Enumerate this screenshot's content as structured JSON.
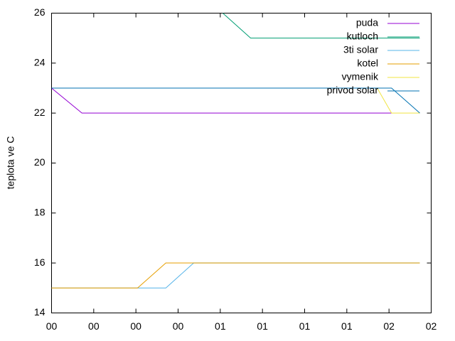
{
  "chart_data": {
    "type": "line",
    "y_label": "teplota ve C",
    "xlim": [
      0,
      9
    ],
    "ylim": [
      14,
      26
    ],
    "xticks": [
      {
        "value": 0,
        "label": "00"
      },
      {
        "value": 1,
        "label": "00"
      },
      {
        "value": 2,
        "label": "00"
      },
      {
        "value": 3,
        "label": "00"
      },
      {
        "value": 4,
        "label": "01"
      },
      {
        "value": 5,
        "label": "01"
      },
      {
        "value": 6,
        "label": "01"
      },
      {
        "value": 7,
        "label": "01"
      },
      {
        "value": 8,
        "label": "02"
      },
      {
        "value": 9,
        "label": "02"
      }
    ],
    "yticks": [
      14,
      16,
      18,
      20,
      22,
      24,
      26
    ],
    "legend": "top-right",
    "series": [
      {
        "name": "puda",
        "color": "#9400d3",
        "x": [
          0,
          0.72,
          8.06
        ],
        "values": [
          23,
          22,
          22
        ]
      },
      {
        "name": "kutloch",
        "color": "#009e73",
        "x": [
          4.06,
          4.72,
          8.73
        ],
        "values": [
          26,
          25,
          25
        ]
      },
      {
        "name": "3ti solar",
        "color": "#56b4e9",
        "x": [
          0,
          2.71,
          3.37,
          8.73
        ],
        "values": [
          15,
          15,
          16,
          16
        ]
      },
      {
        "name": "kotel",
        "color": "#e69f00",
        "x": [
          0,
          2.04,
          2.71,
          8.73
        ],
        "values": [
          15,
          15,
          16,
          16
        ]
      },
      {
        "name": "vymenik",
        "color": "#f0e442",
        "x": [
          0,
          7.72,
          8.06,
          8.73
        ],
        "values": [
          23,
          23,
          22,
          22
        ]
      },
      {
        "name": "privod solar",
        "color": "#0072b2",
        "x": [
          0,
          8.06,
          8.73
        ],
        "values": [
          23,
          23,
          22
        ]
      }
    ]
  }
}
